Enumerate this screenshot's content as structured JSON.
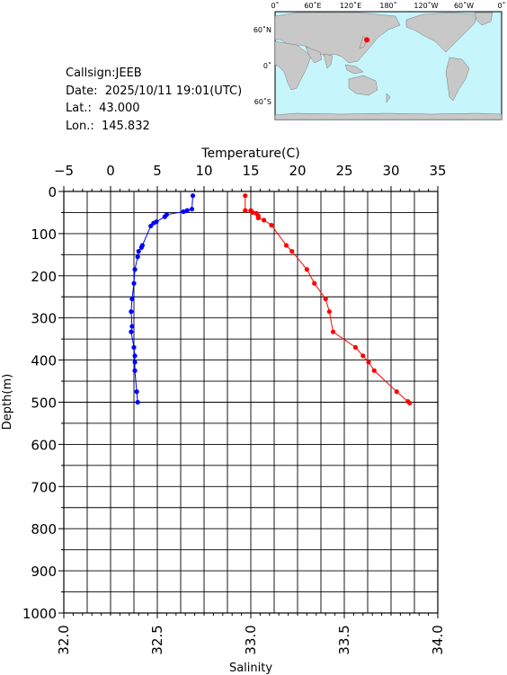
{
  "info": {
    "callsign": "Callsign:JEEB",
    "date": "Date:  2025/10/11 19:01(UTC)",
    "lat": "Lat.:  43.000",
    "lon": "Lon.:  145.832"
  },
  "map": {
    "top_labels": [
      "0˚",
      "60˚E",
      "120˚E",
      "180˚",
      "120˚W",
      "60˚W",
      "0˚"
    ],
    "lat_labels": [
      "60˚N",
      "0˚",
      "60˚S"
    ],
    "station": {
      "lat": 43.0,
      "lon": 145.832
    },
    "colors": {
      "ocean": "#c6f5fb",
      "land": "#c8c8c8",
      "marker": "#ff0000"
    }
  },
  "chart_data": {
    "type": "line",
    "temp_axis": {
      "label": "Temperature(C)",
      "range": [
        -5,
        35
      ],
      "ticks": [
        "−5",
        "0",
        "5",
        "10",
        "15",
        "20",
        "25",
        "30",
        "35"
      ]
    },
    "sal_axis": {
      "label": "Salinity",
      "range": [
        32.0,
        34.0
      ],
      "ticks": [
        "32.0",
        "32.5",
        "33.0",
        "33.5",
        "34.0"
      ]
    },
    "depth_axis": {
      "label": "Depth(m)",
      "range": [
        0,
        1000
      ],
      "ticks": [
        "0",
        "100",
        "200",
        "300",
        "400",
        "500",
        "600",
        "700",
        "800",
        "900",
        "1000"
      ]
    },
    "grid": true,
    "series": [
      {
        "color": "#0000ff",
        "axis": "temp",
        "points": [
          [
            8.8,
            10
          ],
          [
            8.7,
            42
          ],
          [
            8.2,
            45
          ],
          [
            7.8,
            48
          ],
          [
            6.0,
            55
          ],
          [
            5.8,
            60
          ],
          [
            4.9,
            72
          ],
          [
            4.6,
            75
          ],
          [
            4.3,
            82
          ],
          [
            3.4,
            128
          ],
          [
            3.3,
            133
          ],
          [
            3.0,
            142
          ],
          [
            2.9,
            155
          ],
          [
            2.6,
            185
          ],
          [
            2.5,
            218
          ],
          [
            2.3,
            255
          ],
          [
            2.2,
            285
          ],
          [
            2.3,
            320
          ],
          [
            2.2,
            333
          ],
          [
            2.5,
            370
          ],
          [
            2.6,
            390
          ],
          [
            2.6,
            405
          ],
          [
            2.6,
            425
          ],
          [
            2.8,
            475
          ],
          [
            2.9,
            500
          ]
        ]
      },
      {
        "color": "#ff0000",
        "axis": "sal",
        "points": [
          [
            32.97,
            10
          ],
          [
            32.97,
            45
          ],
          [
            33.0,
            45
          ],
          [
            33.01,
            50
          ],
          [
            33.03,
            52
          ],
          [
            33.04,
            58
          ],
          [
            33.04,
            63
          ],
          [
            33.07,
            68
          ],
          [
            33.11,
            80
          ],
          [
            33.19,
            128
          ],
          [
            33.22,
            142
          ],
          [
            33.3,
            185
          ],
          [
            33.34,
            218
          ],
          [
            33.4,
            255
          ],
          [
            33.42,
            285
          ],
          [
            33.44,
            333
          ],
          [
            33.56,
            370
          ],
          [
            33.6,
            390
          ],
          [
            33.63,
            405
          ],
          [
            33.66,
            425
          ],
          [
            33.78,
            475
          ],
          [
            33.84,
            498
          ],
          [
            33.85,
            502
          ]
        ]
      }
    ]
  }
}
